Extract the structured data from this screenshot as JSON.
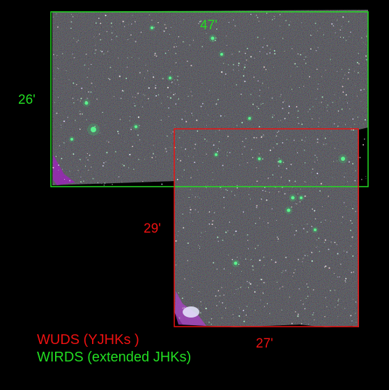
{
  "image": {
    "description_colors": {
      "wirds": "#22dd22",
      "wuds": "#ee1111",
      "background": "#000000"
    }
  },
  "labels": {
    "wirds_width": "47'",
    "wirds_height": "26'",
    "wuds_height": "29'",
    "wuds_width": "27'"
  },
  "legend": {
    "wuds": "WUDS (YJHKs )",
    "wirds": "WIRDS (extended JHKs)"
  }
}
